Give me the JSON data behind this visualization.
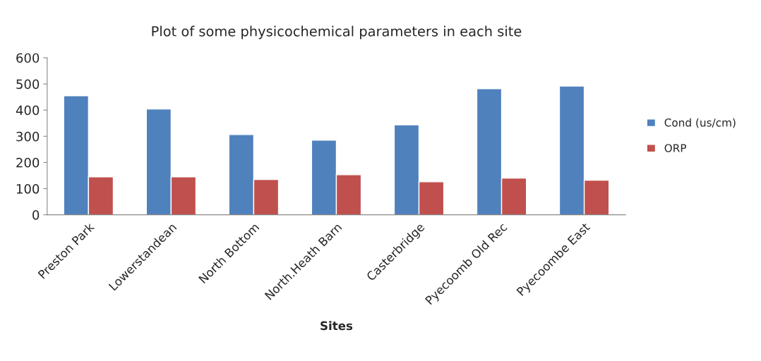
{
  "chart_data": {
    "type": "bar",
    "title": "Plot of some physicochemical parameters in each site",
    "xlabel": "Sites",
    "categories": [
      "Preston Park",
      "Lowerstandean",
      "North Bottom",
      "North.Heath Barn",
      "Casterbridge",
      "Pyecoomb Old Rec",
      "Pyecoombe East"
    ],
    "series": [
      {
        "name": "Cond (us/cm)",
        "color": "#4f81bd",
        "values": [
          455,
          404,
          307,
          285,
          344,
          482,
          492
        ]
      },
      {
        "name": "ORP",
        "color": "#c0504d",
        "values": [
          145,
          145,
          135,
          153,
          126,
          140,
          132
        ]
      }
    ],
    "ylim": [
      0,
      600
    ],
    "yticks": [
      0,
      100,
      200,
      300,
      400,
      500,
      600
    ],
    "grid": false,
    "legend": "right"
  }
}
